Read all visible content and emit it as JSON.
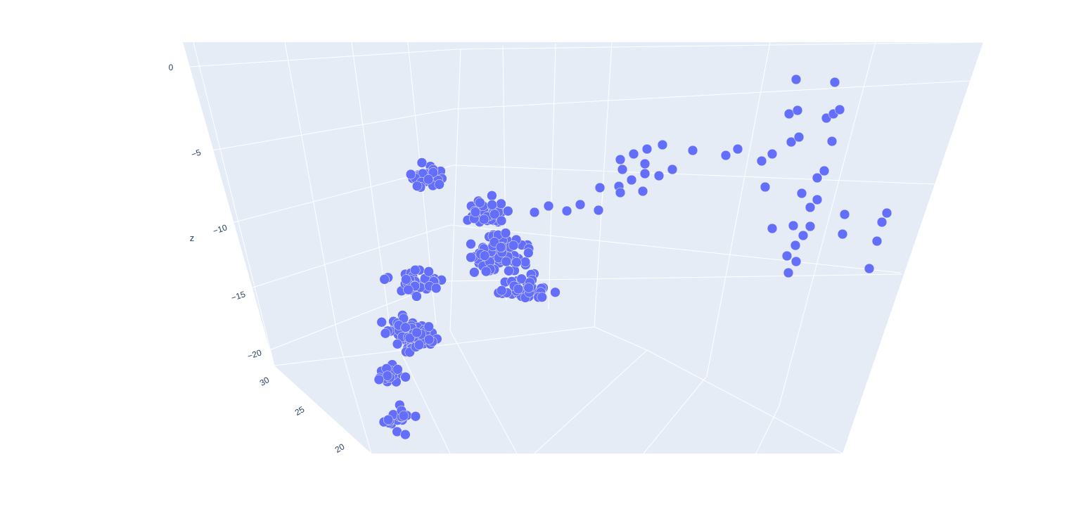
{
  "chart_data": {
    "type": "scatter",
    "dimensions": "3d",
    "marker_color": "#636efa",
    "background_color": "#e5ecf6",
    "grid": true,
    "grid_color": "#ffffff",
    "text_color": "#2a3f5f",
    "z_axis": {
      "title": "z",
      "ticks": [
        0,
        -5,
        -10,
        -15,
        -20
      ],
      "tick_labels": [
        "0",
        "−5",
        "−10",
        "−15",
        "−20"
      ]
    },
    "y_axis": {
      "ticks": [
        30,
        25,
        20
      ],
      "tick_labels": [
        "30",
        "25",
        "20"
      ]
    },
    "marker_count": 430,
    "points_xyz": []
  }
}
